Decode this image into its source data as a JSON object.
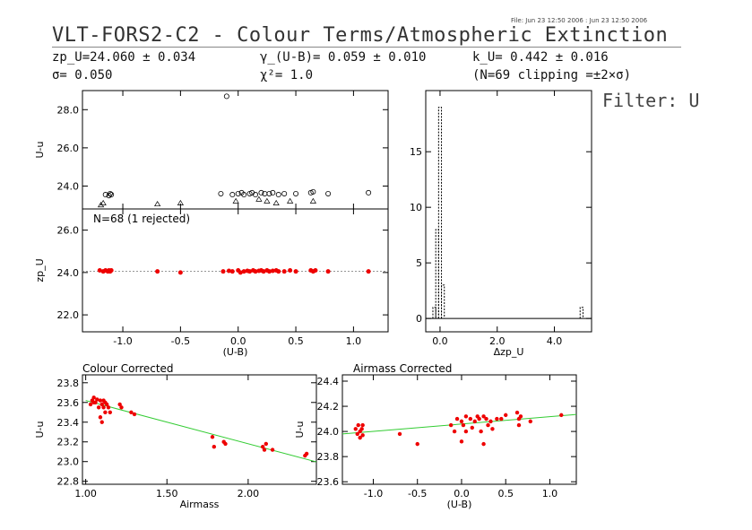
{
  "header": {
    "file_note": "File: Jun 23 12:50 2006 : Jun 23 12:50 2006",
    "title": "VLT-FORS2-C2 - Colour Terms/Atmospheric Extinction",
    "filter_label": "Filter: U",
    "stats": {
      "zp": "zp_U=24.060 ± 0.034",
      "sigma": "σ= 0.050",
      "gamma": "γ_(U-B)= 0.059 ± 0.010",
      "chi2": "χ²= 1.0",
      "k": "k_U= 0.442 ± 0.016",
      "clip": "(N=69 clipping =±2×σ)"
    }
  },
  "colors": {
    "points": "#ee0000",
    "fit_line": "#33cc33",
    "axes": "#000000"
  },
  "chart_data": [
    {
      "id": "raw",
      "type": "scatter",
      "title": "",
      "xlabel": "",
      "ylabel": "U-u",
      "xlim": [
        -1.35,
        1.3
      ],
      "ylim": [
        22.8,
        29.0
      ],
      "yticks": [
        24.0,
        26.0,
        28.0
      ],
      "points": [
        {
          "x": -1.15,
          "y": 23.55,
          "m": "o"
        },
        {
          "x": -1.12,
          "y": 23.5,
          "m": "o"
        },
        {
          "x": -1.11,
          "y": 23.6,
          "m": "o"
        },
        {
          "x": -1.1,
          "y": 23.55,
          "m": "o"
        },
        {
          "x": -1.17,
          "y": 23.1,
          "m": "t"
        },
        {
          "x": -1.19,
          "y": 23.0,
          "m": "t"
        },
        {
          "x": -0.7,
          "y": 23.05,
          "m": "t"
        },
        {
          "x": -0.5,
          "y": 23.1,
          "m": "t"
        },
        {
          "x": -0.15,
          "y": 23.6,
          "m": "o"
        },
        {
          "x": -0.05,
          "y": 23.55,
          "m": "o"
        },
        {
          "x": 0.0,
          "y": 23.6,
          "m": "o"
        },
        {
          "x": 0.03,
          "y": 23.65,
          "m": "o"
        },
        {
          "x": 0.05,
          "y": 23.55,
          "m": "o"
        },
        {
          "x": -0.02,
          "y": 23.2,
          "m": "t"
        },
        {
          "x": 0.1,
          "y": 23.6,
          "m": "o"
        },
        {
          "x": 0.12,
          "y": 23.65,
          "m": "o"
        },
        {
          "x": 0.15,
          "y": 23.55,
          "m": "o"
        },
        {
          "x": 0.18,
          "y": 23.3,
          "m": "t"
        },
        {
          "x": 0.2,
          "y": 23.65,
          "m": "o"
        },
        {
          "x": 0.23,
          "y": 23.6,
          "m": "o"
        },
        {
          "x": 0.25,
          "y": 23.2,
          "m": "t"
        },
        {
          "x": 0.27,
          "y": 23.6,
          "m": "o"
        },
        {
          "x": 0.3,
          "y": 23.65,
          "m": "o"
        },
        {
          "x": 0.33,
          "y": 23.1,
          "m": "t"
        },
        {
          "x": 0.35,
          "y": 23.55,
          "m": "o"
        },
        {
          "x": 0.4,
          "y": 23.6,
          "m": "o"
        },
        {
          "x": 0.45,
          "y": 23.2,
          "m": "t"
        },
        {
          "x": 0.5,
          "y": 23.6,
          "m": "o"
        },
        {
          "x": 0.63,
          "y": 23.65,
          "m": "o"
        },
        {
          "x": 0.65,
          "y": 23.7,
          "m": "o"
        },
        {
          "x": 0.65,
          "y": 23.2,
          "m": "t"
        },
        {
          "x": 0.78,
          "y": 23.6,
          "m": "o"
        },
        {
          "x": 1.13,
          "y": 23.65,
          "m": "o"
        },
        {
          "x": -0.1,
          "y": 28.7,
          "m": "o"
        }
      ]
    },
    {
      "id": "zp",
      "type": "scatter",
      "title": "N=68 (1 rejected)",
      "xlabel": "(U-B)",
      "ylabel": "zp_U",
      "xlim": [
        -1.35,
        1.3
      ],
      "ylim": [
        21.2,
        27.0
      ],
      "xticks": [
        -1.0,
        -0.5,
        0.0,
        0.5,
        1.0
      ],
      "yticks": [
        22.0,
        24.0,
        26.0
      ],
      "ref_line": 24.06,
      "x": [
        -1.2,
        -1.17,
        -1.15,
        -1.13,
        -1.12,
        -1.11,
        -1.1,
        -0.7,
        -0.5,
        -0.13,
        -0.08,
        -0.05,
        0.0,
        0.02,
        0.05,
        0.08,
        0.1,
        0.13,
        0.15,
        0.18,
        0.2,
        0.22,
        0.25,
        0.27,
        0.3,
        0.33,
        0.35,
        0.4,
        0.45,
        0.5,
        0.63,
        0.65,
        0.67,
        0.78,
        1.13
      ],
      "y": [
        24.1,
        24.05,
        24.1,
        24.05,
        24.1,
        24.05,
        24.1,
        24.05,
        24.0,
        24.05,
        24.08,
        24.05,
        24.1,
        24.0,
        24.05,
        24.08,
        24.05,
        24.1,
        24.05,
        24.08,
        24.1,
        24.05,
        24.1,
        24.05,
        24.08,
        24.1,
        24.05,
        24.05,
        24.1,
        24.05,
        24.1,
        24.05,
        24.1,
        24.05,
        24.05
      ]
    },
    {
      "id": "hist",
      "type": "bar",
      "title": "",
      "xlabel": "Δzp_U",
      "ylabel": "",
      "xlim": [
        -0.5,
        5.3
      ],
      "ylim": [
        -1.2,
        20.5
      ],
      "xticks": [
        0.0,
        2.0,
        4.0
      ],
      "yticks": [
        0,
        5,
        10,
        15
      ],
      "bins_x": [
        -0.2,
        -0.1,
        0.0,
        0.1,
        0.2,
        4.95,
        5.05
      ],
      "bins_y": [
        1,
        8,
        19,
        3,
        0,
        1,
        0
      ]
    },
    {
      "id": "colour",
      "type": "scatter",
      "title": "Colour Corrected",
      "xlabel": "Airmass",
      "ylabel": "U-u",
      "xlim": [
        0.98,
        2.42
      ],
      "ylim": [
        22.77,
        23.88
      ],
      "xticks": [
        1.0,
        1.5,
        2.0
      ],
      "xtick_labels": [
        "1.00",
        "1.50",
        "2.00"
      ],
      "yticks": [
        22.8,
        23.0,
        23.2,
        23.4,
        23.6,
        23.8
      ],
      "fit": {
        "x": [
          1.0,
          2.42
        ],
        "y": [
          23.62,
          22.997
        ]
      },
      "x": [
        1.03,
        1.04,
        1.05,
        1.05,
        1.06,
        1.07,
        1.08,
        1.09,
        1.09,
        1.1,
        1.1,
        1.11,
        1.11,
        1.12,
        1.12,
        1.13,
        1.14,
        1.15,
        1.21,
        1.22,
        1.28,
        1.3,
        1.78,
        1.79,
        1.85,
        1.86,
        2.09,
        2.1,
        2.11,
        2.15,
        2.35,
        2.36
      ],
      "y": [
        23.58,
        23.62,
        23.6,
        23.65,
        23.6,
        23.63,
        23.55,
        23.62,
        23.45,
        23.58,
        23.4,
        23.62,
        23.55,
        23.5,
        23.6,
        23.58,
        23.55,
        23.5,
        23.58,
        23.55,
        23.5,
        23.48,
        23.25,
        23.15,
        23.2,
        23.18,
        23.15,
        23.12,
        23.18,
        23.12,
        23.06,
        23.08
      ]
    },
    {
      "id": "airmass",
      "type": "scatter",
      "title": "Airmass Corrected",
      "xlabel": "(U-B)",
      "ylabel": "U-u",
      "xlim": [
        -1.35,
        1.3
      ],
      "ylim": [
        23.58,
        24.45
      ],
      "xticks": [
        -1.0,
        -0.5,
        0.0,
        0.5,
        1.0
      ],
      "yticks": [
        23.6,
        23.8,
        24.0,
        24.2,
        24.4
      ],
      "fit": {
        "x": [
          -1.35,
          1.3
        ],
        "y": [
          23.98,
          24.135
        ]
      },
      "x": [
        -1.2,
        -1.18,
        -1.17,
        -1.15,
        -1.15,
        -1.13,
        -1.12,
        -1.12,
        -0.7,
        -0.5,
        -0.12,
        -0.08,
        -0.05,
        0.0,
        0.0,
        0.02,
        0.05,
        0.05,
        0.1,
        0.12,
        0.15,
        0.18,
        0.2,
        0.22,
        0.25,
        0.25,
        0.28,
        0.3,
        0.33,
        0.35,
        0.4,
        0.45,
        0.5,
        0.63,
        0.65,
        0.65,
        0.67,
        0.78,
        1.13
      ],
      "y": [
        24.02,
        23.98,
        24.05,
        23.95,
        24.0,
        24.02,
        23.97,
        24.05,
        23.98,
        23.9,
        24.05,
        24.0,
        24.1,
        24.08,
        23.92,
        24.05,
        24.12,
        24.0,
        24.1,
        24.03,
        24.08,
        24.12,
        24.1,
        24.0,
        24.12,
        23.9,
        24.1,
        24.05,
        24.08,
        24.02,
        24.1,
        24.1,
        24.13,
        24.15,
        24.05,
        24.1,
        24.12,
        24.08,
        24.13
      ]
    }
  ]
}
